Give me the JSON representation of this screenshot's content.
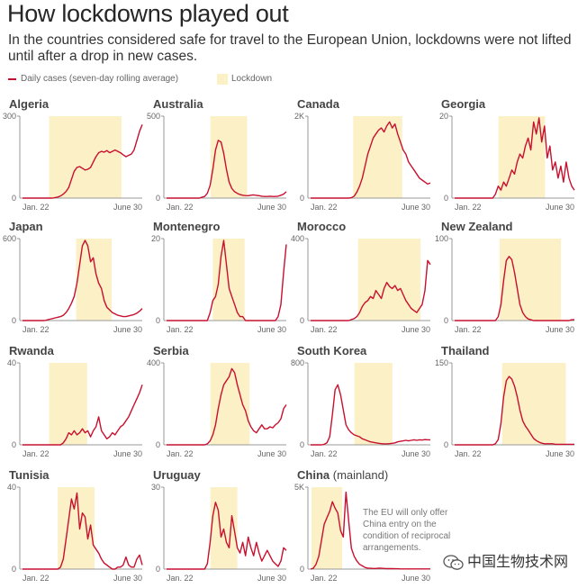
{
  "title": "How lockdowns played out",
  "subtitle": "In the countries considered safe for travel to the European Union, lockdowns were not lifted until after a drop in new cases.",
  "legend": {
    "daily_cases": "Daily cases (seven-day rolling average)",
    "lockdown": "Lockdown"
  },
  "colors": {
    "line": "#c8102e",
    "lockdown": "#fbf0c6",
    "axis": "#999999",
    "label": "#666666",
    "country": "#444444"
  },
  "watermark": {
    "icon": "wechat-icon",
    "text": "中国生物技术网"
  },
  "chart_data": [
    {
      "type": "line",
      "title": "Algeria",
      "x_start": "Jan. 22",
      "x_end": "June 30",
      "ymax_label": "300",
      "ylim": [
        0,
        300
      ],
      "lockdown": [
        0.24,
        0.83
      ],
      "values": [
        0,
        0,
        0,
        0,
        0,
        0,
        0,
        0,
        0,
        0,
        0,
        0,
        2,
        4,
        8,
        15,
        25,
        40,
        70,
        100,
        115,
        118,
        112,
        105,
        108,
        115,
        135,
        155,
        170,
        175,
        172,
        178,
        170,
        175,
        180,
        175,
        170,
        162,
        155,
        160,
        165,
        180,
        215,
        250,
        275
      ]
    },
    {
      "type": "line",
      "title": "Australia",
      "x_start": "Jan. 22",
      "x_end": "June 30",
      "ymax_label": "500",
      "ylim": [
        0,
        500
      ],
      "lockdown": [
        0.38,
        0.68
      ],
      "values": [
        0,
        0,
        0,
        0,
        0,
        0,
        0,
        0,
        0,
        0,
        0,
        0,
        0,
        5,
        10,
        30,
        80,
        180,
        300,
        360,
        350,
        280,
        180,
        100,
        60,
        40,
        30,
        22,
        18,
        16,
        15,
        18,
        20,
        17,
        15,
        12,
        10,
        10,
        12,
        10,
        10,
        12,
        18,
        25,
        40
      ]
    },
    {
      "type": "line",
      "title": "Canada",
      "x_start": "Jan. 22",
      "x_end": "June 30",
      "ymax_label": "2K",
      "ylim": [
        0,
        2000
      ],
      "lockdown": [
        0.37,
        0.77
      ],
      "values": [
        0,
        0,
        0,
        0,
        0,
        0,
        0,
        0,
        0,
        0,
        0,
        0,
        0,
        0,
        0,
        10,
        50,
        150,
        300,
        500,
        800,
        1100,
        1300,
        1500,
        1600,
        1700,
        1750,
        1650,
        1800,
        1900,
        1750,
        1850,
        1600,
        1400,
        1200,
        1100,
        900,
        800,
        700,
        600,
        500,
        450,
        400,
        350,
        380
      ]
    },
    {
      "type": "line",
      "title": "Georgia",
      "x_start": "Jan. 22",
      "x_end": "June 30",
      "ymax_label": "20",
      "ylim": [
        0,
        20
      ],
      "lockdown": [
        0.38,
        0.76
      ],
      "values": [
        0,
        0,
        0,
        0,
        0,
        0,
        0,
        0,
        0,
        0,
        0,
        0,
        0,
        0,
        0,
        1,
        3,
        2,
        4,
        3,
        5,
        7,
        6,
        9,
        11,
        10,
        13,
        15,
        12,
        19,
        16,
        20,
        14,
        18,
        10,
        13,
        7,
        9,
        5,
        8,
        4,
        9,
        5,
        3,
        2
      ]
    },
    {
      "type": "line",
      "title": "Japan",
      "x_start": "Jan. 22",
      "x_end": "June 30",
      "ymax_label": "600",
      "ylim": [
        0,
        600
      ],
      "lockdown": [
        0.46,
        0.75
      ],
      "values": [
        0,
        0,
        0,
        0,
        0,
        0,
        0,
        0,
        0,
        5,
        10,
        15,
        20,
        25,
        30,
        40,
        60,
        90,
        130,
        180,
        280,
        420,
        560,
        600,
        560,
        440,
        470,
        350,
        280,
        240,
        150,
        100,
        80,
        60,
        50,
        40,
        35,
        30,
        30,
        35,
        40,
        45,
        55,
        70,
        90
      ]
    },
    {
      "type": "line",
      "title": "Montenegro",
      "x_start": "Jan. 22",
      "x_end": "June 30",
      "ymax_label": "20",
      "ylim": [
        0,
        20
      ],
      "lockdown": [
        0.4,
        0.66
      ],
      "values": [
        0,
        0,
        0,
        0,
        0,
        0,
        0,
        0,
        0,
        0,
        0,
        0,
        0,
        0,
        0,
        0,
        2,
        5,
        6,
        9,
        16,
        20,
        14,
        8,
        6,
        4,
        2,
        1,
        1,
        0,
        0,
        0,
        0,
        0,
        0,
        0,
        0,
        0,
        0,
        0,
        0,
        1,
        4,
        12,
        19
      ]
    },
    {
      "type": "line",
      "title": "Morocco",
      "x_start": "Jan. 22",
      "x_end": "June 30",
      "ymax_label": "400",
      "ylim": [
        0,
        400
      ],
      "lockdown": [
        0.41,
        0.92
      ],
      "values": [
        0,
        0,
        0,
        0,
        0,
        0,
        0,
        0,
        0,
        0,
        0,
        0,
        0,
        0,
        0,
        5,
        10,
        20,
        40,
        70,
        90,
        100,
        120,
        110,
        150,
        130,
        110,
        160,
        190,
        170,
        160,
        175,
        150,
        160,
        130,
        100,
        80,
        60,
        50,
        40,
        60,
        80,
        150,
        300,
        280
      ]
    },
    {
      "type": "line",
      "title": "New Zealand",
      "x_start": "Jan. 22",
      "x_end": "June 30",
      "ymax_label": "100",
      "ylim": [
        0,
        100
      ],
      "lockdown": [
        0.39,
        0.89
      ],
      "values": [
        0,
        0,
        0,
        0,
        0,
        0,
        0,
        0,
        0,
        0,
        0,
        0,
        0,
        0,
        0,
        0,
        5,
        20,
        50,
        75,
        80,
        76,
        60,
        40,
        20,
        10,
        5,
        2,
        1,
        0,
        0,
        0,
        0,
        0,
        0,
        0,
        0,
        0,
        0,
        0,
        0,
        0,
        0,
        1,
        1
      ]
    },
    {
      "type": "line",
      "title": "Rwanda",
      "x_start": "Jan. 22",
      "x_end": "June 30",
      "ymax_label": "40",
      "ylim": [
        0,
        40
      ],
      "lockdown": [
        0.24,
        0.55
      ],
      "values": [
        0,
        0,
        0,
        0,
        0,
        0,
        0,
        0,
        0,
        0,
        0,
        0,
        0,
        0,
        0,
        1,
        3,
        6,
        5,
        7,
        5,
        6,
        8,
        6,
        7,
        4,
        7,
        9,
        14,
        7,
        5,
        3,
        4,
        6,
        5,
        7,
        9,
        10,
        12,
        14,
        17,
        20,
        23,
        26,
        30
      ]
    },
    {
      "type": "line",
      "title": "Serbia",
      "x_start": "Jan. 22",
      "x_end": "June 30",
      "ymax_label": "400",
      "ylim": [
        0,
        400
      ],
      "lockdown": [
        0.38,
        0.7
      ],
      "values": [
        0,
        0,
        0,
        0,
        0,
        0,
        0,
        0,
        0,
        0,
        0,
        0,
        0,
        0,
        0,
        5,
        20,
        50,
        100,
        180,
        250,
        300,
        320,
        340,
        380,
        360,
        300,
        250,
        200,
        170,
        120,
        90,
        70,
        60,
        80,
        100,
        80,
        80,
        90,
        85,
        100,
        110,
        130,
        180,
        200
      ]
    },
    {
      "type": "line",
      "title": "South Korea",
      "x_start": "Jan. 22",
      "x_end": "June 30",
      "ymax_label": "800",
      "ylim": [
        0,
        800
      ],
      "lockdown": [
        0.38,
        0.69
      ],
      "values": [
        0,
        0,
        0,
        0,
        0,
        5,
        20,
        80,
        300,
        550,
        600,
        500,
        350,
        200,
        150,
        120,
        100,
        90,
        80,
        60,
        50,
        40,
        30,
        25,
        20,
        15,
        12,
        10,
        10,
        12,
        15,
        20,
        30,
        35,
        40,
        45,
        40,
        45,
        50,
        45,
        50,
        48,
        52,
        50,
        50
      ]
    },
    {
      "type": "line",
      "title": "Thailand",
      "x_start": "Jan. 22",
      "x_end": "June 30",
      "ymax_label": "150",
      "ylim": [
        0,
        150
      ],
      "lockdown": [
        0.41,
        0.93
      ],
      "values": [
        0,
        0,
        0,
        0,
        0,
        0,
        0,
        0,
        0,
        0,
        0,
        0,
        0,
        0,
        0,
        2,
        10,
        40,
        90,
        120,
        128,
        123,
        110,
        90,
        65,
        45,
        35,
        28,
        20,
        12,
        8,
        5,
        3,
        2,
        2,
        2,
        2,
        1,
        1,
        1,
        1,
        1,
        1,
        1,
        1
      ]
    },
    {
      "type": "line",
      "title": "Tunisia",
      "x_start": "Jan. 22",
      "x_end": "June 30",
      "ymax_label": "40",
      "ylim": [
        0,
        40
      ],
      "lockdown": [
        0.31,
        0.61
      ],
      "values": [
        0,
        0,
        0,
        0,
        0,
        0,
        0,
        0,
        0,
        0,
        0,
        0,
        0,
        0,
        1,
        5,
        15,
        25,
        35,
        30,
        38,
        20,
        28,
        26,
        15,
        22,
        12,
        10,
        8,
        5,
        3,
        2,
        1,
        0,
        0,
        1,
        1,
        2,
        6,
        2,
        1,
        1,
        5,
        7,
        2
      ]
    },
    {
      "type": "line",
      "title": "Uruguay",
      "x_start": "Jan. 22",
      "x_end": "June 30",
      "ymax_label": "30",
      "ylim": [
        0,
        30
      ],
      "lockdown": [
        0.38,
        0.6
      ],
      "values": [
        0,
        0,
        0,
        0,
        0,
        0,
        0,
        0,
        0,
        0,
        0,
        0,
        0,
        0,
        0,
        2,
        10,
        20,
        25,
        22,
        12,
        15,
        10,
        8,
        20,
        14,
        8,
        6,
        10,
        5,
        12,
        8,
        5,
        10,
        6,
        3,
        5,
        7,
        5,
        3,
        2,
        1,
        3,
        8,
        7
      ]
    },
    {
      "type": "line",
      "title": "China",
      "title_suffix": "(mainland)",
      "x_start": "Jan. 22",
      "x_end": "June 30",
      "ymax_label": "5K",
      "ylim": [
        0,
        5000
      ],
      "lockdown": [
        0.03,
        0.28
      ],
      "annotation": "The EU will only offer China entry on the condition of reciprocal arrangements.",
      "values": [
        0,
        50,
        300,
        800,
        1800,
        2800,
        3200,
        3600,
        4200,
        3800,
        3500,
        2400,
        2000,
        4800,
        3000,
        1300,
        800,
        500,
        300,
        200,
        100,
        60,
        50,
        40,
        40,
        60,
        50,
        40,
        30,
        30,
        30,
        20,
        20,
        10,
        10,
        10,
        10,
        10,
        10,
        10,
        10,
        10,
        10,
        10,
        10
      ]
    }
  ]
}
